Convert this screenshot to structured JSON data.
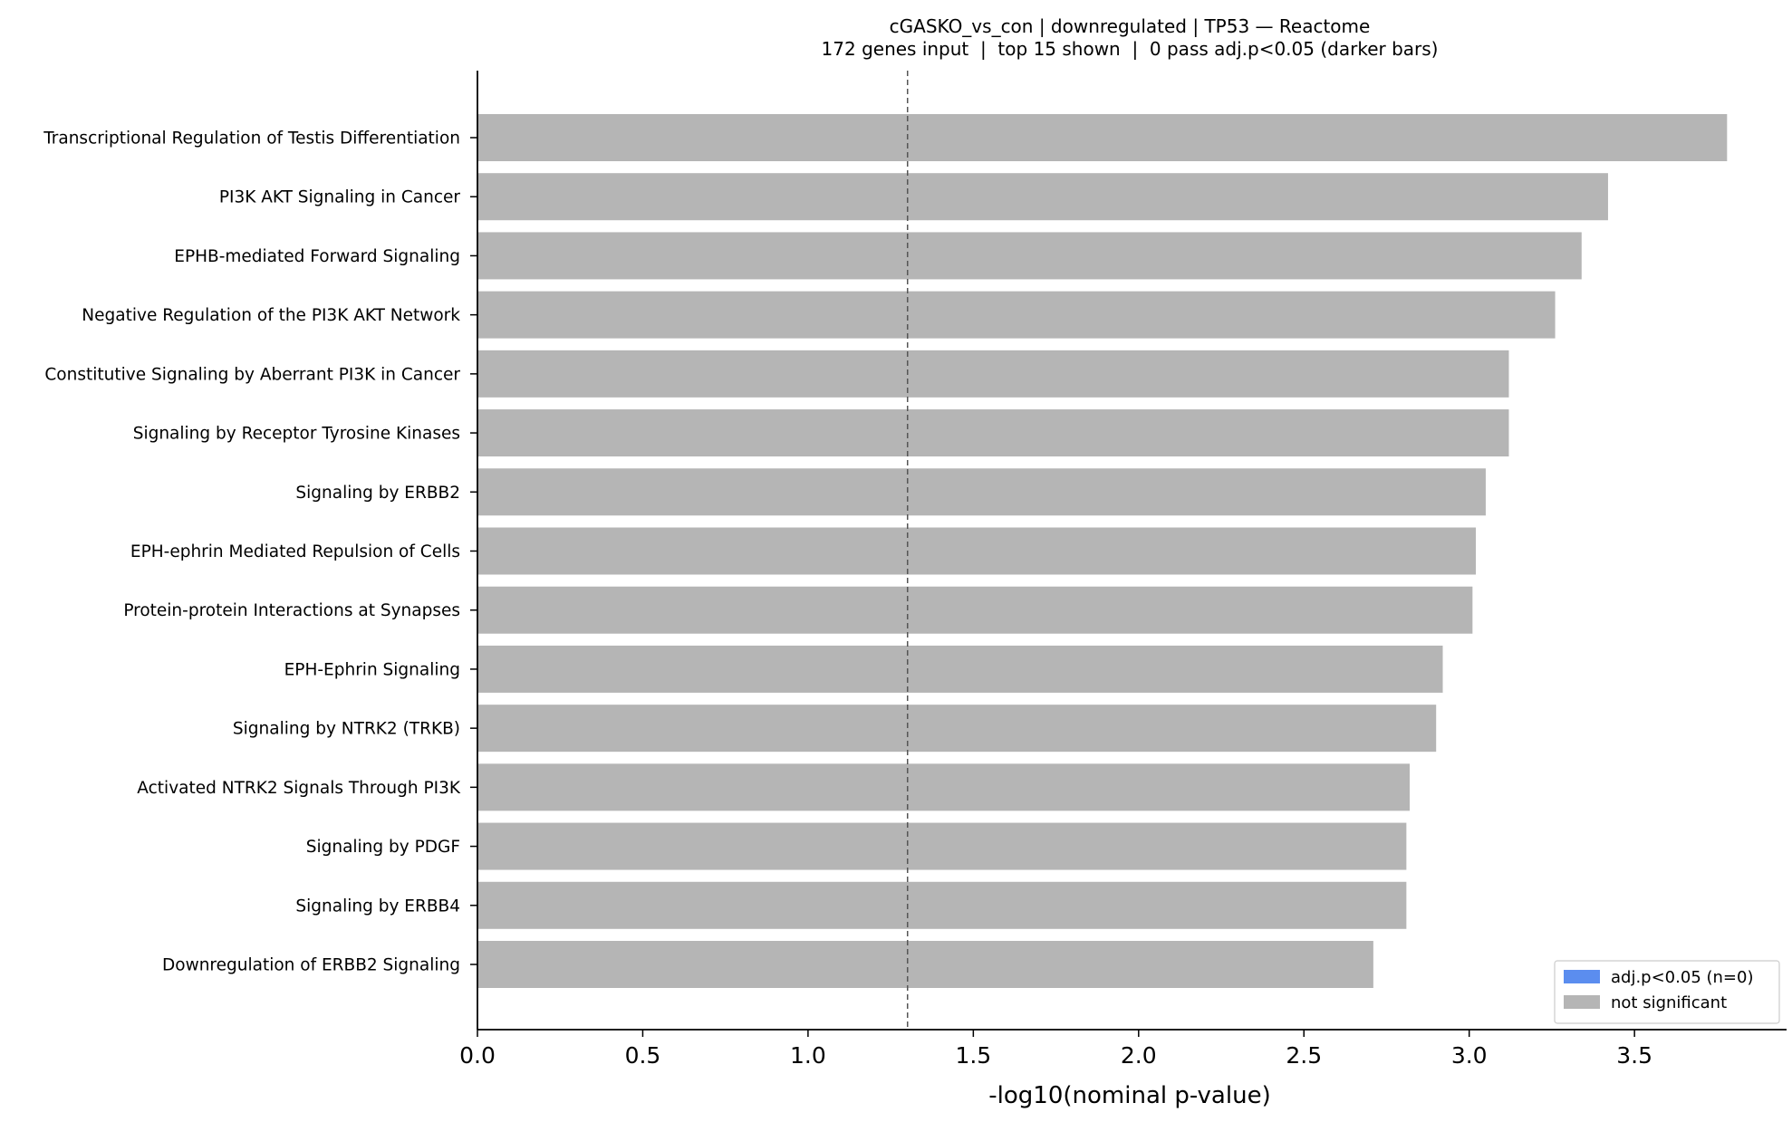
{
  "chart_data": {
    "type": "bar",
    "orientation": "horizontal",
    "title": "cGASKO_vs_con | downregulated | TP53 — Reactome",
    "subtitle": "172 genes input  |  top 15 shown  |  0 pass adj.p<0.05 (darker bars)",
    "xlabel": "-log10(nominal p-value)",
    "ylabel": "",
    "xlim": [
      0,
      3.96
    ],
    "x_ticks": [
      "0.0",
      "0.5",
      "1.0",
      "1.5",
      "2.0",
      "2.5",
      "3.0",
      "3.5"
    ],
    "x_tick_values": [
      0,
      0.5,
      1.0,
      1.5,
      2.0,
      2.5,
      3.0,
      3.5
    ],
    "threshold_line": 1.301,
    "grid": false,
    "legend_position": "bottom-right",
    "categories": [
      "Transcriptional Regulation of Testis Differentiation",
      "PI3K AKT Signaling in Cancer",
      "EPHB-mediated Forward Signaling",
      "Negative Regulation of the PI3K AKT Network",
      "Constitutive Signaling by Aberrant PI3K in Cancer",
      "Signaling by Receptor Tyrosine Kinases",
      "Signaling by ERBB2",
      "EPH-ephrin Mediated Repulsion of Cells",
      "Protein-protein Interactions at Synapses",
      "EPH-Ephrin Signaling",
      "Signaling by NTRK2 (TRKB)",
      "Activated NTRK2 Signals Through PI3K",
      "Signaling by PDGF",
      "Signaling by ERBB4",
      "Downregulation of ERBB2 Signaling"
    ],
    "values": [
      3.78,
      3.42,
      3.34,
      3.26,
      3.12,
      3.12,
      3.05,
      3.02,
      3.01,
      2.92,
      2.9,
      2.82,
      2.81,
      2.81,
      2.71
    ],
    "significant": [
      false,
      false,
      false,
      false,
      false,
      false,
      false,
      false,
      false,
      false,
      false,
      false,
      false,
      false,
      false
    ],
    "legend": [
      {
        "label": "adj.p<0.05 (n=0)",
        "color": "#5b8def"
      },
      {
        "label": "not significant",
        "color": "#b5b5b5"
      }
    ],
    "colors": {
      "significant": "#5b8def",
      "not_significant": "#b5b5b5",
      "threshold": "#555555",
      "axis": "#000000"
    }
  }
}
